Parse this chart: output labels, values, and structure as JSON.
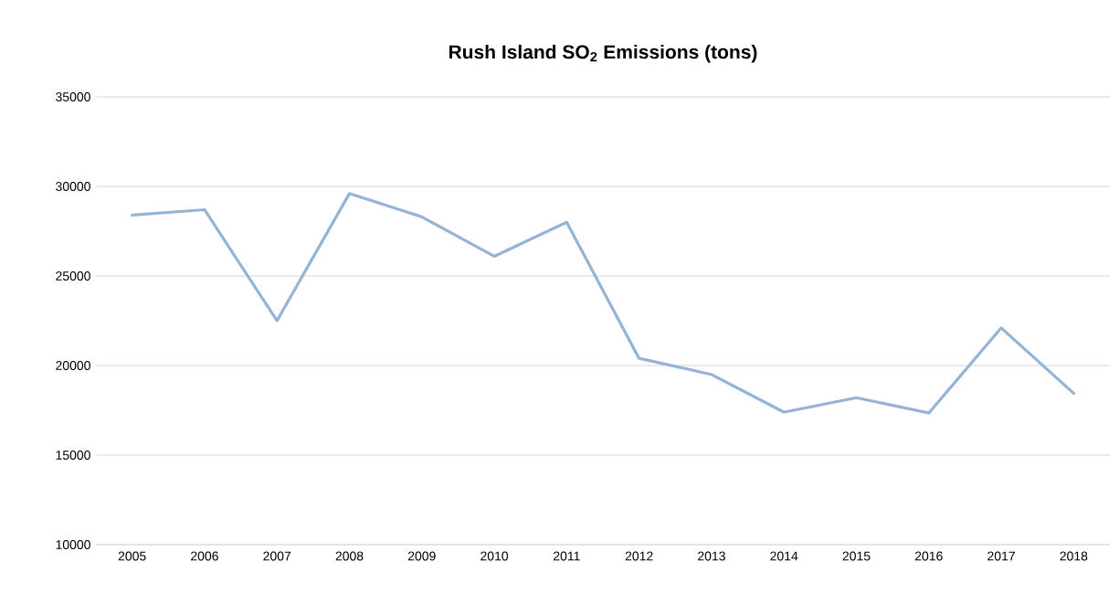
{
  "chart_data": {
    "type": "line",
    "title": "Rush Island SO$_{2}$ Emissions (tons)",
    "categories": [
      "2005",
      "2006",
      "2007",
      "2008",
      "2009",
      "2010",
      "2011",
      "2012",
      "2013",
      "2014",
      "2015",
      "2016",
      "2017",
      "2018"
    ],
    "series": [
      {
        "color": "#95b3d7",
        "values": [
          28400,
          28700,
          22500,
          29600,
          28300,
          26100,
          28000,
          20400,
          19500,
          17400,
          18200,
          17350,
          22100,
          18450
        ]
      }
    ],
    "ylim": [
      10000,
      35000
    ],
    "yticks": [
      10000,
      15000,
      20000,
      25000,
      30000,
      35000
    ],
    "grid": "y",
    "marker": "none",
    "line_style": "solid"
  }
}
